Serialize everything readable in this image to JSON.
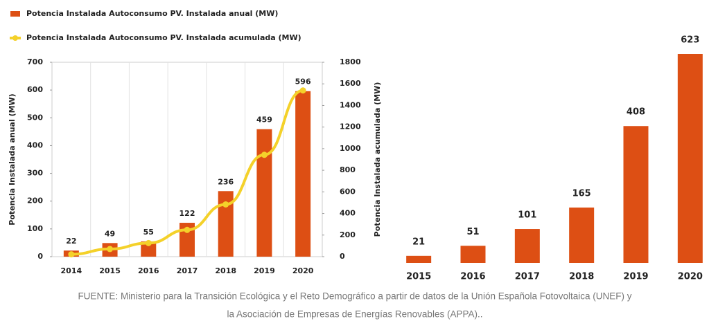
{
  "chart_data": [
    {
      "type": "bar",
      "categories": [
        "2014",
        "2015",
        "2016",
        "2017",
        "2018",
        "2019",
        "2020"
      ],
      "series": [
        {
          "name": "Potencia Instalada Autoconsumo PV. Instalada anual (MW)",
          "color": "#dd4f14",
          "type": "bar",
          "values": [
            22,
            49,
            55,
            122,
            236,
            459,
            596
          ]
        },
        {
          "name": "Potencia Instalada Autoconsumo PV. Instalada acumulada (MW)",
          "color": "#f4d12a",
          "type": "line",
          "axis": "y2",
          "values": [
            22,
            71,
            126,
            248,
            484,
            943,
            1539
          ]
        }
      ],
      "ylabel": "Potencia Instalada  anual (MW)",
      "y2label": "Potencia Instalada acumulada (MW)",
      "ylim": [
        0,
        700
      ],
      "yticks": [
        0,
        100,
        200,
        300,
        400,
        500,
        600,
        700
      ],
      "y2lim": [
        0,
        1800
      ],
      "y2ticks": [
        0,
        200,
        400,
        600,
        800,
        1000,
        1200,
        1400,
        1600,
        1800
      ],
      "grid": true
    },
    {
      "type": "bar",
      "categories": [
        "2015",
        "2016",
        "2017",
        "2018",
        "2019",
        "2020"
      ],
      "values": [
        21,
        51,
        101,
        165,
        408,
        623
      ],
      "color": "#dd4f14"
    }
  ],
  "source": [
    "FUENTE: Ministerio para la Transición Ecológica y el Reto Demográfico a partir de datos de la Unión Española Fotovoltaica (UNEF) y",
    "la Asociación de Empresas de Energías Renovables (APPA).."
  ]
}
